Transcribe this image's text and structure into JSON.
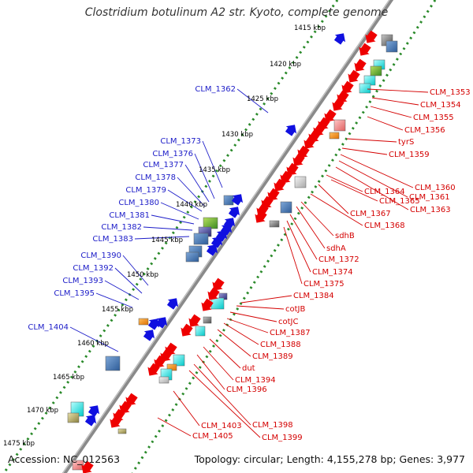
{
  "title": "Clostridium botulinum A2 str. Kyoto, complete genome",
  "accession_text": "Accession: NC_012563",
  "topology_text": "Topology: circular; Length: 4,155,278 bp; Genes: 3,977",
  "kbp_labels": [
    "1415 kbp",
    "1420 kbp",
    "1425 kbp",
    "1430 kbp",
    "1435 kbp",
    "1440 kbp",
    "1445 kbp",
    "1450 kbp",
    "1455 kbp",
    "1460 kbp",
    "1465 kbp",
    "1470 kbp",
    "1475 kbp"
  ],
  "forward_gene_labels": [
    "CLM_1362",
    "CLM_1373",
    "CLM_1376",
    "CLM_1377",
    "CLM_1378",
    "CLM_1379",
    "CLM_1380",
    "CLM_1381",
    "CLM_1382",
    "CLM_1383",
    "CLM_1390",
    "CLM_1392",
    "CLM_1393",
    "CLM_1395",
    "CLM_1404"
  ],
  "reverse_gene_labels": [
    "CLM_1353",
    "CLM_1354",
    "CLM_1355",
    "CLM_1356",
    "tyrS",
    "CLM_1359",
    "CLM_1360",
    "CLM_1361",
    "CLM_1363",
    "CLM_1364",
    "CLM_1365",
    "CLM_1367",
    "CLM_1368",
    "sdhB",
    "sdhA",
    "CLM_1372",
    "CLM_1374",
    "CLM_1375",
    "CLM_1384",
    "cotJB",
    "cotJC",
    "CLM_1387",
    "CLM_1388",
    "CLM_1389",
    "dut",
    "CLM_1394",
    "CLM_1396",
    "CLM_1398",
    "CLM_1399",
    "CLM_1403",
    "CLM_1405"
  ],
  "colors": {
    "forward_label": "#1c1cc8",
    "reverse_label": "#d40000",
    "forward_gene": "#1010e0",
    "reverse_gene": "#ee0000",
    "backbone": "#8a8a8a",
    "tick": "#2a8a2a"
  }
}
